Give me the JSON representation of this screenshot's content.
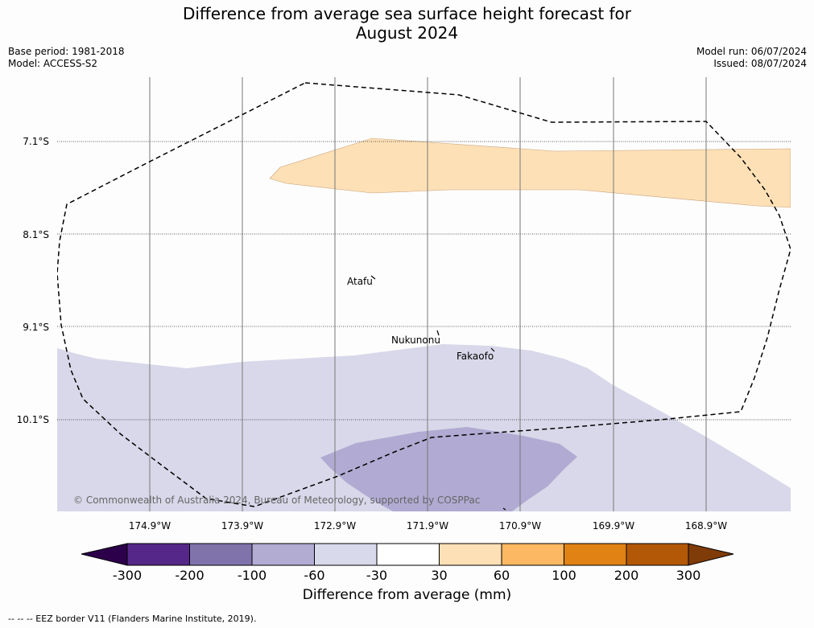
{
  "title": {
    "line1": "Difference from average sea surface height forecast for",
    "line2": "August 2024"
  },
  "meta": {
    "base_period": "Base period: 1981-2018",
    "model": "Model: ACCESS-S2",
    "model_run": "Model run: 06/07/2024",
    "issued": "Issued: 08/07/2024"
  },
  "map": {
    "lat_labels": [
      "7.1°S",
      "8.1°S",
      "9.1°S",
      "10.1°S"
    ],
    "lon_labels": [
      "174.9°W",
      "173.9°W",
      "172.9°W",
      "171.9°W",
      "170.9°W",
      "169.9°W",
      "168.9°W"
    ],
    "places": [
      "Atafu",
      "Nukunonu",
      "Fakaofo"
    ],
    "copyright": "© Commonwealth of Australia 2024, Bureau of Meteorology, supported by COSPPac",
    "colors": {
      "positive_30_60": "#fde0b6",
      "negative_30_60": "#d8d8ea",
      "negative_60_100": "#b1aad2"
    }
  },
  "colorbar": {
    "title": "Difference from average (mm)",
    "tick_labels": [
      "-300",
      "-200",
      "-100",
      "-60",
      "-30",
      "30",
      "60",
      "100",
      "200",
      "300"
    ],
    "colors": [
      "#2d004b",
      "#542788",
      "#8073ac",
      "#b2abd2",
      "#d8daeb",
      "#ffffff",
      "#fee0b6",
      "#fdb863",
      "#e08214",
      "#b35806",
      "#7f3b08"
    ]
  },
  "footnote": "--  --  -- EEZ border V11 (Flanders Marine Institute, 2019)."
}
